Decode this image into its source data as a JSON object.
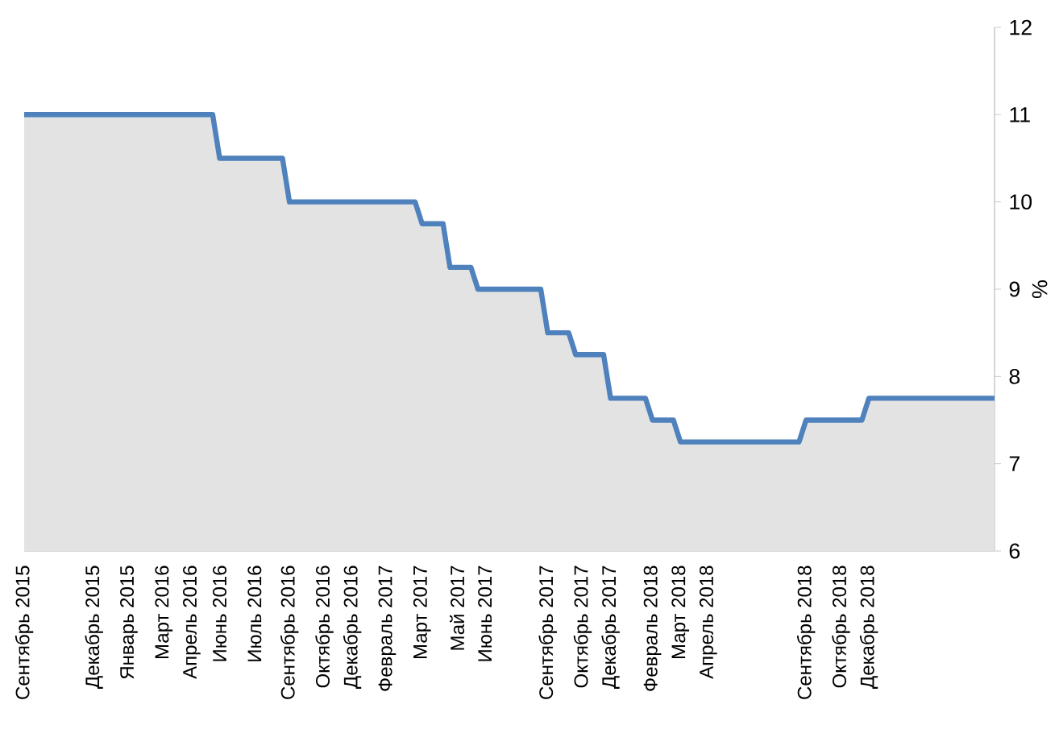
{
  "chart_data": {
    "type": "area",
    "ylabel": "%",
    "categories": [
      "Сентябрь 2015",
      null,
      null,
      null,
      null,
      null,
      null,
      null,
      null,
      null,
      "Декабрь 2015",
      null,
      null,
      null,
      null,
      "Январь 2015",
      null,
      null,
      null,
      null,
      "Март 2016",
      null,
      null,
      null,
      "Апрель 2016",
      null,
      null,
      null,
      "Июнь 2016",
      null,
      null,
      null,
      null,
      "Июль 2016",
      null,
      null,
      null,
      null,
      "Сентябрь 2016",
      null,
      null,
      null,
      null,
      "Октябрь 2016",
      null,
      null,
      null,
      "Декабрь 2016",
      null,
      null,
      null,
      null,
      "Февраль 2017",
      null,
      null,
      null,
      null,
      "Март 2017",
      null,
      null,
      null,
      null,
      "Май 2017",
      null,
      null,
      null,
      "Июнь 2017",
      null,
      null,
      null,
      null,
      null,
      null,
      null,
      null,
      "Сентябрь 2017",
      null,
      null,
      null,
      null,
      "Октябрь 2017",
      null,
      null,
      null,
      "Декабрь 2017",
      null,
      null,
      null,
      null,
      null,
      "Февраль 2018",
      null,
      null,
      null,
      "Март 2018",
      null,
      null,
      null,
      "Апрель 2018",
      null,
      null,
      null,
      null,
      null,
      null,
      null,
      null,
      null,
      null,
      null,
      null,
      null,
      "Сентябрь 2018",
      null,
      null,
      null,
      null,
      "Октябрь 2018",
      null,
      null,
      null,
      "Декабрь 2018",
      null,
      null,
      null,
      null,
      null,
      null,
      null,
      null,
      null,
      null,
      null,
      null,
      null,
      null,
      null,
      null,
      null,
      null
    ],
    "series": [
      {
        "color": "#4f81bd",
        "values": [
          11,
          11,
          11,
          11,
          11,
          11,
          11,
          11,
          11,
          11,
          11,
          11,
          11,
          11,
          11,
          11,
          11,
          11,
          11,
          11,
          11,
          11,
          11,
          11,
          11,
          11,
          11,
          11,
          10.5,
          10.5,
          10.5,
          10.5,
          10.5,
          10.5,
          10.5,
          10.5,
          10.5,
          10.5,
          10,
          10,
          10,
          10,
          10,
          10,
          10,
          10,
          10,
          10,
          10,
          10,
          10,
          10,
          10,
          10,
          10,
          10,
          10,
          9.75,
          9.75,
          9.75,
          9.75,
          9.25,
          9.25,
          9.25,
          9.25,
          9,
          9,
          9,
          9,
          9,
          9,
          9,
          9,
          9,
          9,
          8.5,
          8.5,
          8.5,
          8.5,
          8.25,
          8.25,
          8.25,
          8.25,
          8.25,
          7.75,
          7.75,
          7.75,
          7.75,
          7.75,
          7.75,
          7.5,
          7.5,
          7.5,
          7.5,
          7.25,
          7.25,
          7.25,
          7.25,
          7.25,
          7.25,
          7.25,
          7.25,
          7.25,
          7.25,
          7.25,
          7.25,
          7.25,
          7.25,
          7.25,
          7.25,
          7.25,
          7.25,
          7.5,
          7.5,
          7.5,
          7.5,
          7.5,
          7.5,
          7.5,
          7.5,
          7.5,
          7.75,
          7.75,
          7.75,
          7.75,
          7.75,
          7.75,
          7.75,
          7.75,
          7.75,
          7.75,
          7.75,
          7.75,
          7.75,
          7.75,
          7.75,
          7.75,
          7.75,
          7.75,
          7.75
        ]
      }
    ],
    "ylim": [
      6,
      12
    ],
    "yticks": [
      6,
      7,
      8,
      9,
      10,
      11,
      12
    ],
    "grid": false
  }
}
